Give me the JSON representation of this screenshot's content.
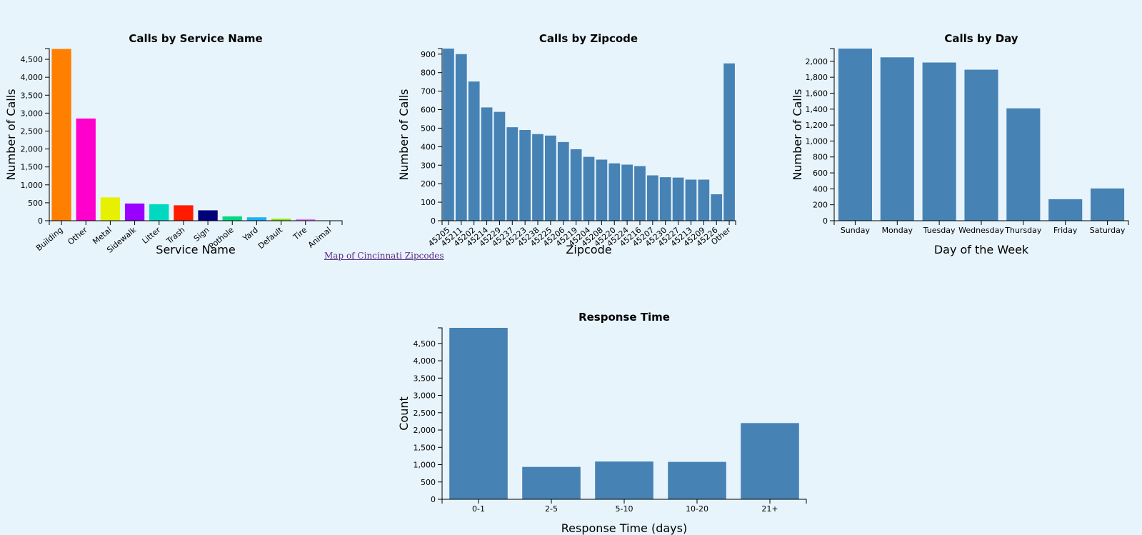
{
  "link": {
    "map_label": "Map of Cincinnati Zipcodes"
  },
  "bar_color": "#4682b4",
  "chart_data": [
    {
      "id": "service",
      "type": "bar",
      "title": "Calls by Service Name",
      "xlabel": "Service Name",
      "ylabel": "Number of Calls",
      "ylim": [
        0,
        4800
      ],
      "yticks": [
        0,
        500,
        1000,
        1500,
        2000,
        2500,
        3000,
        3500,
        4000,
        4500
      ],
      "rotate_labels": true,
      "categories": [
        "Building",
        "Other",
        "Metal",
        "Sidewalk",
        "Litter",
        "Trash",
        "Sign",
        "Pothole",
        "Yard",
        "Default",
        "Tire",
        "Animal"
      ],
      "values": [
        4790,
        2850,
        650,
        480,
        460,
        430,
        290,
        120,
        95,
        55,
        45,
        10
      ],
      "colors": [
        "#ff8000",
        "#ff00cc",
        "#e6f000",
        "#9900ff",
        "#00d9c0",
        "#ff1a00",
        "#00007a",
        "#00d980",
        "#1ab2f0",
        "#8ce600",
        "#d580ff",
        "#000000"
      ]
    },
    {
      "id": "zipcode",
      "type": "bar",
      "title": "Calls by Zipcode",
      "xlabel": "Zipcode",
      "ylabel": "Number of Calls",
      "ylim": [
        0,
        930
      ],
      "yticks": [
        0,
        100,
        200,
        300,
        400,
        500,
        600,
        700,
        800,
        900
      ],
      "rotate_labels": true,
      "categories": [
        "45205",
        "45211",
        "45202",
        "45214",
        "45229",
        "45237",
        "45223",
        "45238",
        "45225",
        "45206",
        "45219",
        "45204",
        "45208",
        "45220",
        "45224",
        "45216",
        "45207",
        "45230",
        "45227",
        "45213",
        "45209",
        "45226",
        "Other"
      ],
      "values": [
        930,
        900,
        752,
        612,
        588,
        505,
        490,
        468,
        460,
        425,
        386,
        345,
        330,
        310,
        303,
        295,
        245,
        235,
        233,
        222,
        222,
        143,
        850
      ]
    },
    {
      "id": "day",
      "type": "bar",
      "title": "Calls by Day",
      "xlabel": "Day of the Week",
      "ylabel": "Number of Calls",
      "ylim": [
        0,
        2160
      ],
      "yticks": [
        0,
        200,
        400,
        600,
        800,
        1000,
        1200,
        1400,
        1600,
        1800,
        2000
      ],
      "rotate_labels": false,
      "categories": [
        "Sunday",
        "Monday",
        "Tuesday",
        "Wednesday",
        "Thursday",
        "Friday",
        "Saturday"
      ],
      "values": [
        2160,
        2050,
        1985,
        1895,
        1410,
        270,
        405
      ]
    },
    {
      "id": "response",
      "type": "bar",
      "title": "Response Time",
      "xlabel": "Response Time (days)",
      "ylabel": "Count",
      "ylim": [
        0,
        4950
      ],
      "yticks": [
        0,
        500,
        1000,
        1500,
        2000,
        2500,
        3000,
        3500,
        4000,
        4500
      ],
      "rotate_labels": false,
      "categories": [
        "0-1",
        "2-5",
        "5-10",
        "10-20",
        "21+"
      ],
      "values": [
        4950,
        935,
        1090,
        1080,
        2200
      ]
    }
  ]
}
